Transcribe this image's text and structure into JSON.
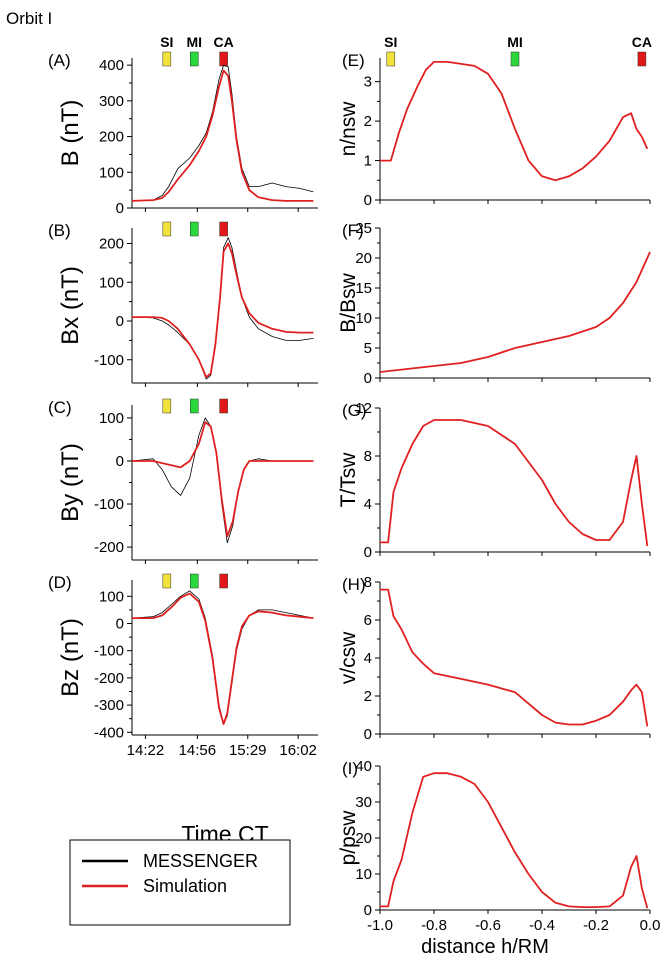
{
  "figure_title": "Orbit I",
  "legend": {
    "entries": [
      {
        "label": "MESSENGER",
        "color": "#000000"
      },
      {
        "label": "Simulation",
        "color": "#e02020"
      }
    ]
  },
  "colors": {
    "SI": "#f2e33a",
    "MI": "#2ad63a",
    "CA": "#e01818",
    "simulation": "#e02020",
    "messenger": "#000000"
  },
  "left_xlabel": "Time CT",
  "right_xlabel": "distance h/RM",
  "chart_data": [
    {
      "id": "A",
      "panel_label": "(A)",
      "type": "line",
      "ylabel": "B (nT)",
      "markers": [
        "SI",
        "MI",
        "CA"
      ],
      "xlim": [
        14.22,
        16.25
      ],
      "ylim": [
        0,
        420
      ],
      "yticks": [
        0,
        100,
        200,
        300,
        400
      ],
      "x_ticks": [],
      "series": [
        {
          "name": "MESSENGER",
          "x": [
            14.22,
            14.45,
            14.55,
            14.62,
            14.72,
            14.85,
            14.95,
            15.03,
            15.1,
            15.17,
            15.22,
            15.27,
            15.31,
            15.36,
            15.42,
            15.5,
            15.6,
            15.75,
            15.9,
            16.05,
            16.2
          ],
          "values": [
            20,
            22,
            35,
            60,
            110,
            140,
            175,
            210,
            270,
            360,
            400,
            395,
            320,
            200,
            110,
            60,
            60,
            70,
            60,
            55,
            45
          ]
        },
        {
          "name": "Simulation",
          "x": [
            14.22,
            14.45,
            14.55,
            14.62,
            14.72,
            14.85,
            14.95,
            15.03,
            15.1,
            15.17,
            15.22,
            15.27,
            15.31,
            15.36,
            15.42,
            15.5,
            15.6,
            15.75,
            15.9,
            16.05,
            16.2
          ],
          "values": [
            20,
            22,
            28,
            45,
            80,
            120,
            160,
            200,
            260,
            340,
            385,
            370,
            300,
            190,
            100,
            50,
            30,
            22,
            20,
            20,
            20
          ]
        }
      ]
    },
    {
      "id": "B",
      "panel_label": "(B)",
      "type": "line",
      "ylabel": "Bx (nT)",
      "markers": [
        "SI",
        "MI",
        "CA"
      ],
      "xlim": [
        14.22,
        16.25
      ],
      "ylim": [
        -160,
        240
      ],
      "yticks": [
        -100,
        0,
        100,
        200
      ],
      "series": [
        {
          "name": "MESSENGER",
          "x": [
            14.22,
            14.45,
            14.55,
            14.62,
            14.72,
            14.85,
            14.95,
            15.03,
            15.08,
            15.13,
            15.18,
            15.22,
            15.27,
            15.31,
            15.36,
            15.42,
            15.5,
            15.6,
            15.75,
            15.9,
            16.05,
            16.2
          ],
          "values": [
            10,
            8,
            0,
            -10,
            -30,
            -60,
            -100,
            -150,
            -140,
            -60,
            60,
            190,
            215,
            190,
            130,
            60,
            10,
            -20,
            -40,
            -50,
            -50,
            -45
          ]
        },
        {
          "name": "Simulation",
          "x": [
            14.22,
            14.45,
            14.55,
            14.62,
            14.72,
            14.85,
            14.95,
            15.03,
            15.08,
            15.13,
            15.18,
            15.22,
            15.27,
            15.31,
            15.36,
            15.42,
            15.5,
            15.6,
            15.75,
            15.9,
            16.05,
            16.2
          ],
          "values": [
            10,
            10,
            8,
            0,
            -20,
            -60,
            -100,
            -145,
            -135,
            -60,
            60,
            180,
            200,
            175,
            120,
            60,
            20,
            -5,
            -20,
            -28,
            -30,
            -30
          ]
        }
      ]
    },
    {
      "id": "C",
      "panel_label": "(C)",
      "type": "line",
      "ylabel": "By (nT)",
      "markers": [
        "SI",
        "MI",
        "CA"
      ],
      "xlim": [
        14.22,
        16.25
      ],
      "ylim": [
        -230,
        130
      ],
      "yticks": [
        -200,
        -100,
        0,
        100
      ],
      "series": [
        {
          "name": "MESSENGER",
          "x": [
            14.22,
            14.45,
            14.55,
            14.65,
            14.75,
            14.85,
            14.95,
            15.02,
            15.08,
            15.14,
            15.2,
            15.26,
            15.32,
            15.38,
            15.44,
            15.5,
            15.6,
            15.75,
            15.9,
            16.05,
            16.2
          ],
          "values": [
            0,
            5,
            -20,
            -60,
            -80,
            -40,
            60,
            100,
            80,
            20,
            -100,
            -190,
            -150,
            -70,
            -20,
            0,
            5,
            0,
            0,
            0,
            0
          ]
        },
        {
          "name": "Simulation",
          "x": [
            14.22,
            14.45,
            14.55,
            14.65,
            14.75,
            14.85,
            14.95,
            15.02,
            15.08,
            15.14,
            15.2,
            15.26,
            15.32,
            15.38,
            15.44,
            15.5,
            15.6,
            15.75,
            15.9,
            16.05,
            16.2
          ],
          "values": [
            0,
            0,
            -5,
            -10,
            -15,
            0,
            40,
            90,
            80,
            20,
            -90,
            -175,
            -140,
            -70,
            -20,
            0,
            0,
            0,
            0,
            0,
            0
          ]
        }
      ]
    },
    {
      "id": "D",
      "panel_label": "(D)",
      "type": "line",
      "ylabel": "Bz (nT)",
      "markers": [
        "SI",
        "MI",
        "CA"
      ],
      "xlim": [
        14.22,
        16.25
      ],
      "ylim": [
        -410,
        160
      ],
      "yticks": [
        -400,
        -300,
        -200,
        -100,
        0,
        100
      ],
      "x_ticks": [
        "14:22",
        "14:56",
        "15:29",
        "16:02"
      ],
      "series": [
        {
          "name": "MESSENGER",
          "x": [
            14.22,
            14.45,
            14.55,
            14.65,
            14.75,
            14.85,
            14.95,
            15.02,
            15.1,
            15.17,
            15.22,
            15.26,
            15.31,
            15.36,
            15.42,
            15.5,
            15.6,
            15.75,
            15.9,
            16.05,
            16.2
          ],
          "values": [
            20,
            25,
            40,
            70,
            100,
            120,
            90,
            20,
            -120,
            -300,
            -370,
            -340,
            -220,
            -100,
            -20,
            30,
            50,
            50,
            40,
            30,
            20
          ]
        },
        {
          "name": "Simulation",
          "x": [
            14.22,
            14.45,
            14.55,
            14.65,
            14.75,
            14.85,
            14.95,
            15.02,
            15.1,
            15.17,
            15.22,
            15.26,
            15.31,
            15.36,
            15.42,
            15.5,
            15.6,
            15.75,
            15.9,
            16.05,
            16.2
          ],
          "values": [
            20,
            20,
            30,
            60,
            95,
            110,
            80,
            10,
            -130,
            -310,
            -370,
            -330,
            -210,
            -90,
            -10,
            30,
            45,
            40,
            30,
            25,
            20
          ]
        }
      ]
    },
    {
      "id": "E",
      "panel_label": "(E)",
      "type": "line",
      "ylabel": "n/nsw",
      "markers": [
        "SI",
        "MI",
        "CA"
      ],
      "xlim": [
        -1.0,
        0.0
      ],
      "ylim": [
        0,
        3.6
      ],
      "yticks": [
        0,
        1,
        2,
        3
      ],
      "series": [
        {
          "name": "Simulation",
          "x": [
            -1.0,
            -0.96,
            -0.93,
            -0.9,
            -0.86,
            -0.83,
            -0.8,
            -0.75,
            -0.7,
            -0.65,
            -0.6,
            -0.55,
            -0.5,
            -0.45,
            -0.4,
            -0.35,
            -0.3,
            -0.25,
            -0.2,
            -0.15,
            -0.1,
            -0.07,
            -0.05,
            -0.03,
            -0.01
          ],
          "values": [
            1.0,
            1.0,
            1.7,
            2.3,
            2.9,
            3.3,
            3.5,
            3.5,
            3.45,
            3.4,
            3.2,
            2.7,
            1.8,
            1.0,
            0.6,
            0.5,
            0.6,
            0.8,
            1.1,
            1.5,
            2.1,
            2.2,
            1.8,
            1.6,
            1.3
          ]
        }
      ]
    },
    {
      "id": "F",
      "panel_label": "(F)",
      "type": "line",
      "ylabel": "B/Bsw",
      "markers": [],
      "xlim": [
        -1.0,
        0.0
      ],
      "ylim": [
        0,
        25
      ],
      "yticks": [
        0,
        5,
        10,
        15,
        20,
        25
      ],
      "series": [
        {
          "name": "Simulation",
          "x": [
            -1.0,
            -0.9,
            -0.8,
            -0.7,
            -0.6,
            -0.5,
            -0.4,
            -0.3,
            -0.2,
            -0.15,
            -0.1,
            -0.05,
            0.0
          ],
          "values": [
            1,
            1.5,
            2,
            2.5,
            3.5,
            5,
            6,
            7,
            8.5,
            10,
            12.5,
            16,
            21
          ]
        }
      ]
    },
    {
      "id": "G",
      "panel_label": "(G)",
      "type": "line",
      "ylabel": "T/Tsw",
      "markers": [],
      "xlim": [
        -1.0,
        0.0
      ],
      "ylim": [
        0,
        12
      ],
      "yticks": [
        0,
        4,
        8,
        12
      ],
      "series": [
        {
          "name": "Simulation",
          "x": [
            -1.0,
            -0.97,
            -0.95,
            -0.92,
            -0.88,
            -0.84,
            -0.8,
            -0.7,
            -0.6,
            -0.5,
            -0.45,
            -0.4,
            -0.35,
            -0.3,
            -0.25,
            -0.2,
            -0.15,
            -0.1,
            -0.07,
            -0.05,
            -0.03,
            -0.01
          ],
          "values": [
            0.8,
            0.8,
            5,
            7,
            9,
            10.5,
            11,
            11,
            10.5,
            9,
            7.5,
            6,
            4,
            2.5,
            1.5,
            1,
            1,
            2.5,
            6,
            8,
            4,
            0.5
          ]
        }
      ]
    },
    {
      "id": "H",
      "panel_label": "(H)",
      "type": "line",
      "ylabel": "v/csw",
      "markers": [],
      "xlim": [
        -1.0,
        0.0
      ],
      "ylim": [
        0,
        8
      ],
      "yticks": [
        0,
        2,
        4,
        6,
        8
      ],
      "series": [
        {
          "name": "Simulation",
          "x": [
            -1.0,
            -0.97,
            -0.95,
            -0.92,
            -0.88,
            -0.84,
            -0.8,
            -0.7,
            -0.6,
            -0.5,
            -0.45,
            -0.4,
            -0.35,
            -0.3,
            -0.25,
            -0.2,
            -0.15,
            -0.1,
            -0.07,
            -0.05,
            -0.03,
            -0.01
          ],
          "values": [
            7.6,
            7.6,
            6.2,
            5.5,
            4.3,
            3.7,
            3.2,
            2.9,
            2.6,
            2.2,
            1.6,
            1.0,
            0.6,
            0.5,
            0.5,
            0.7,
            1.0,
            1.7,
            2.3,
            2.6,
            2.2,
            0.4
          ]
        }
      ]
    },
    {
      "id": "I",
      "panel_label": "(I)",
      "type": "line",
      "ylabel": "p/psw",
      "markers": [],
      "xlim": [
        -1.0,
        0.0
      ],
      "ylim": [
        0,
        40
      ],
      "yticks": [
        0,
        10,
        20,
        30,
        40
      ],
      "x_ticks": [
        "-1.0",
        "-0.8",
        "-0.6",
        "-0.4",
        "-0.2",
        "0.0"
      ],
      "series": [
        {
          "name": "Simulation",
          "x": [
            -1.0,
            -0.97,
            -0.95,
            -0.92,
            -0.88,
            -0.84,
            -0.8,
            -0.75,
            -0.7,
            -0.65,
            -0.6,
            -0.55,
            -0.5,
            -0.45,
            -0.4,
            -0.35,
            -0.3,
            -0.25,
            -0.2,
            -0.15,
            -0.1,
            -0.07,
            -0.05,
            -0.03,
            -0.01
          ],
          "values": [
            1,
            1,
            8,
            14,
            27,
            37,
            38,
            38,
            37,
            35,
            30,
            23,
            16,
            10,
            5,
            2,
            1,
            0.8,
            0.8,
            1,
            4,
            12,
            15,
            6,
            0.5
          ]
        }
      ]
    }
  ]
}
